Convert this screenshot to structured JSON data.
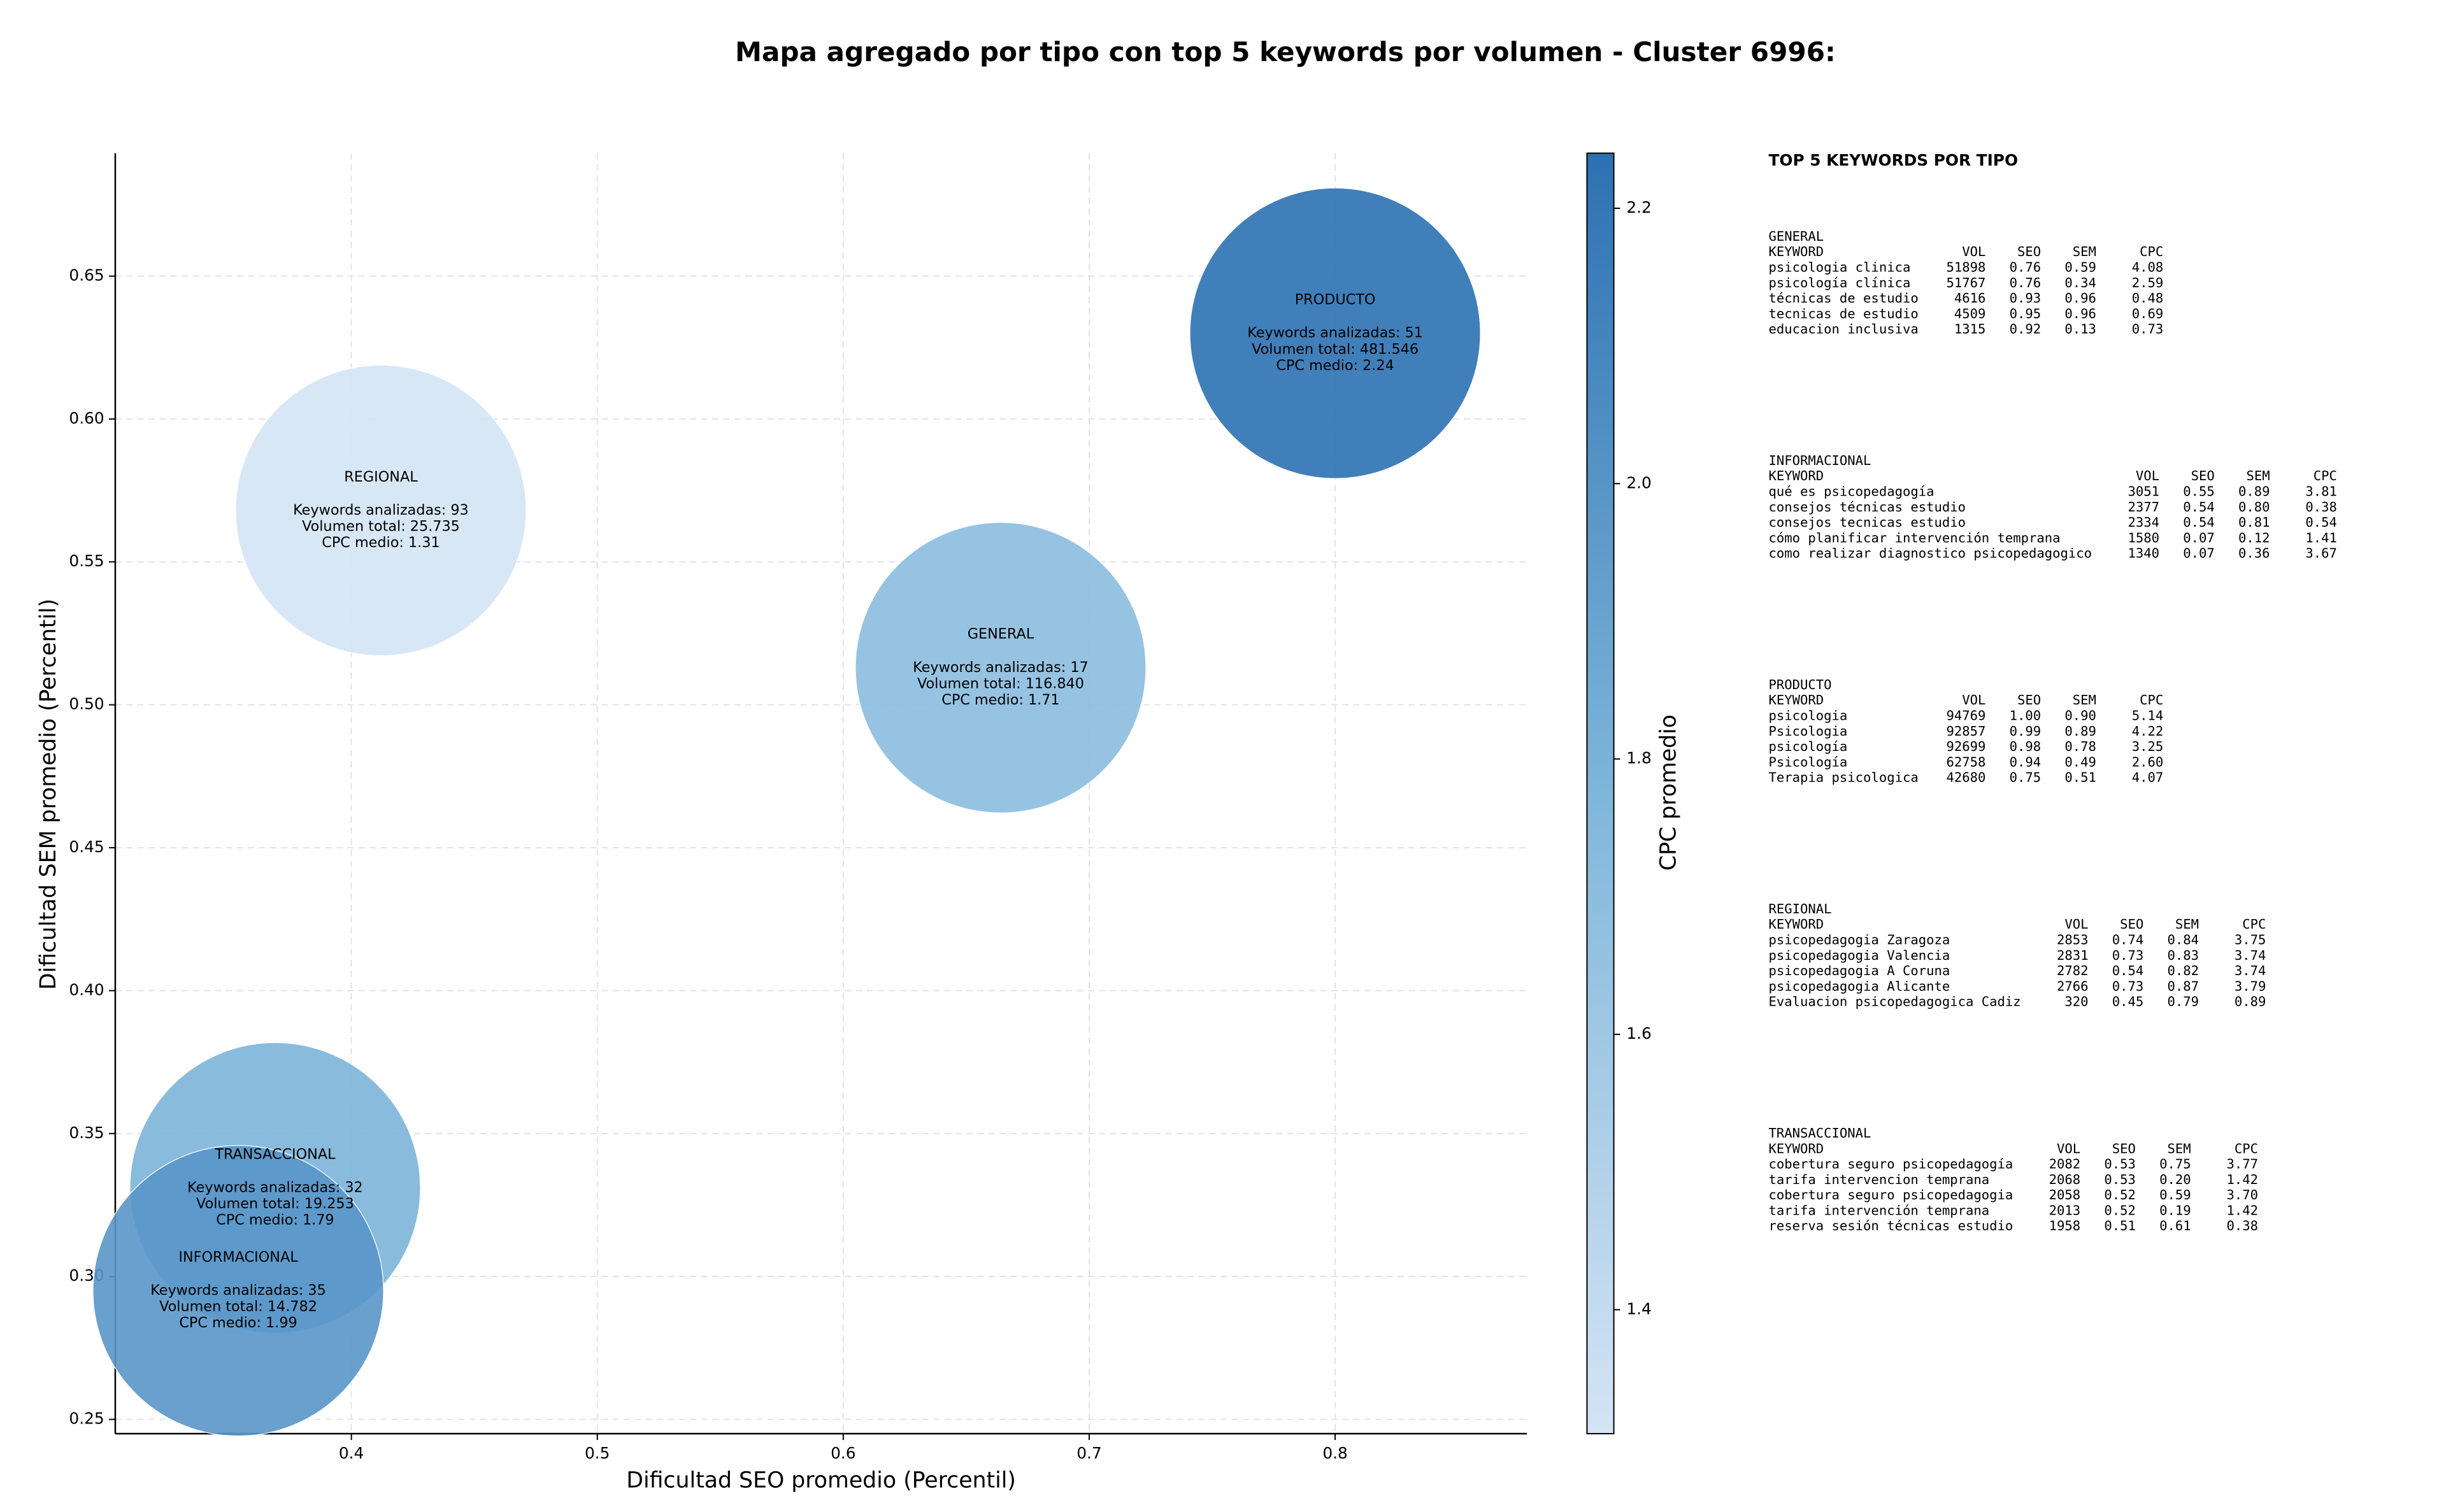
{
  "chart_data": {
    "type": "bubble",
    "title": "Mapa agregado por tipo con top 5 keywords por volumen - Cluster 6996:",
    "x_label": "Dificultad SEO promedio (Percentil)",
    "y_label": "Dificultad SEM promedio (Percentil)",
    "colorbar_label": "CPC promedio",
    "xlim": [
      0.304,
      0.878
    ],
    "ylim": [
      0.245,
      0.693
    ],
    "clim": [
      1.31,
      2.24
    ],
    "xticks": [
      0.4,
      0.5,
      0.6,
      0.7,
      0.8
    ],
    "yticks": [
      0.25,
      {
        "value": 0.3,
        "label": "0.30"
      },
      0.35,
      {
        "value": 0.4,
        "label": "0.40"
      },
      0.45,
      {
        "value": 0.5,
        "label": "0.50"
      },
      0.55,
      {
        "value": 0.6,
        "label": "0.60"
      },
      0.65
    ],
    "cticks": [
      1.4,
      1.6,
      1.8,
      {
        "value": 2.0,
        "label": "2.0"
      },
      2.2
    ],
    "colormap": [
      "#d4e4f4",
      "#7fb6da",
      "#2c71b2"
    ],
    "grid": true,
    "points": [
      {
        "name": "PRODUCTO",
        "x": 0.8,
        "y": 0.63,
        "cpc": 2.24,
        "labels": [
          "Keywords analizadas: 51",
          "Volumen total: 481.546",
          "CPC medio: 2.24"
        ]
      },
      {
        "name": "GENERAL",
        "x": 0.664,
        "y": 0.513,
        "cpc": 1.71,
        "labels": [
          "Keywords analizadas: 17",
          "Volumen total: 116.840",
          "CPC medio: 1.71"
        ]
      },
      {
        "name": "REGIONAL",
        "x": 0.412,
        "y": 0.568,
        "cpc": 1.31,
        "labels": [
          "Keywords analizadas: 93",
          "Volumen total: 25.735",
          "CPC medio: 1.31"
        ]
      },
      {
        "name": "TRANSACCIONAL",
        "x": 0.369,
        "y": 0.331,
        "cpc": 1.79,
        "labels": [
          "Keywords analizadas: 32",
          "Volumen total: 19.253",
          "CPC medio: 1.79"
        ]
      },
      {
        "name": "INFORMACIONAL",
        "x": 0.354,
        "y": 0.295,
        "cpc": 1.99,
        "labels": [
          "Keywords analizadas: 35",
          "Volumen total: 14.782",
          "CPC medio: 1.99"
        ]
      }
    ]
  },
  "keyword_tables": {
    "title": "TOP 5 KEYWORDS POR TIPO",
    "blocks": [
      {
        "name": "GENERAL",
        "columns": [
          "KEYWORD",
          "VOL",
          "SEO",
          "SEM",
          "CPC"
        ],
        "rows": [
          [
            "psicologia clinica",
            "51898",
            "0.76",
            "0.59",
            "4.08"
          ],
          [
            "psicología clínica",
            "51767",
            "0.76",
            "0.34",
            "2.59"
          ],
          [
            "técnicas de estudio",
            "4616",
            "0.93",
            "0.96",
            "0.48"
          ],
          [
            "tecnicas de estudio",
            "4509",
            "0.95",
            "0.96",
            "0.69"
          ],
          [
            "educacion inclusiva",
            "1315",
            "0.92",
            "0.13",
            "0.73"
          ]
        ]
      },
      {
        "name": "INFORMACIONAL",
        "columns": [
          "KEYWORD",
          "VOL",
          "SEO",
          "SEM",
          "CPC"
        ],
        "rows": [
          [
            "qué es psicopedagogía",
            "3051",
            "0.55",
            "0.89",
            "3.81"
          ],
          [
            "consejos técnicas estudio",
            "2377",
            "0.54",
            "0.80",
            "0.38"
          ],
          [
            "consejos tecnicas estudio",
            "2334",
            "0.54",
            "0.81",
            "0.54"
          ],
          [
            "cómo planificar intervención temprana",
            "1580",
            "0.07",
            "0.12",
            "1.41"
          ],
          [
            "como realizar diagnostico psicopedagogico",
            "1340",
            "0.07",
            "0.36",
            "3.67"
          ]
        ]
      },
      {
        "name": "PRODUCTO",
        "columns": [
          "KEYWORD",
          "VOL",
          "SEO",
          "SEM",
          "CPC"
        ],
        "rows": [
          [
            "psicologia",
            "94769",
            "1.00",
            "0.90",
            "5.14"
          ],
          [
            "Psicologia",
            "92857",
            "0.99",
            "0.89",
            "4.22"
          ],
          [
            "psicología",
            "92699",
            "0.98",
            "0.78",
            "3.25"
          ],
          [
            "Psicología",
            "62758",
            "0.94",
            "0.49",
            "2.60"
          ],
          [
            "Terapia psicologica",
            "42680",
            "0.75",
            "0.51",
            "4.07"
          ]
        ]
      },
      {
        "name": "REGIONAL",
        "columns": [
          "KEYWORD",
          "VOL",
          "SEO",
          "SEM",
          "CPC"
        ],
        "rows": [
          [
            "psicopedagogia Zaragoza",
            "2853",
            "0.74",
            "0.84",
            "3.75"
          ],
          [
            "psicopedagogia Valencia",
            "2831",
            "0.73",
            "0.83",
            "3.74"
          ],
          [
            "psicopedagogia A Coruna",
            "2782",
            "0.54",
            "0.82",
            "3.74"
          ],
          [
            "psicopedagogia Alicante",
            "2766",
            "0.73",
            "0.87",
            "3.79"
          ],
          [
            "Evaluacion psicopedagogica Cadiz",
            "320",
            "0.45",
            "0.79",
            "0.89"
          ]
        ]
      },
      {
        "name": "TRANSACCIONAL",
        "columns": [
          "KEYWORD",
          "VOL",
          "SEO",
          "SEM",
          "CPC"
        ],
        "rows": [
          [
            "cobertura seguro psicopedagogía",
            "2082",
            "0.53",
            "0.75",
            "3.77"
          ],
          [
            "tarifa intervencion temprana",
            "2068",
            "0.53",
            "0.20",
            "1.42"
          ],
          [
            "cobertura seguro psicopedagogia",
            "2058",
            "0.52",
            "0.59",
            "3.70"
          ],
          [
            "tarifa intervención temprana",
            "2013",
            "0.52",
            "0.19",
            "1.42"
          ],
          [
            "reserva sesión técnicas estudio",
            "1958",
            "0.51",
            "0.61",
            "0.38"
          ]
        ]
      }
    ]
  }
}
